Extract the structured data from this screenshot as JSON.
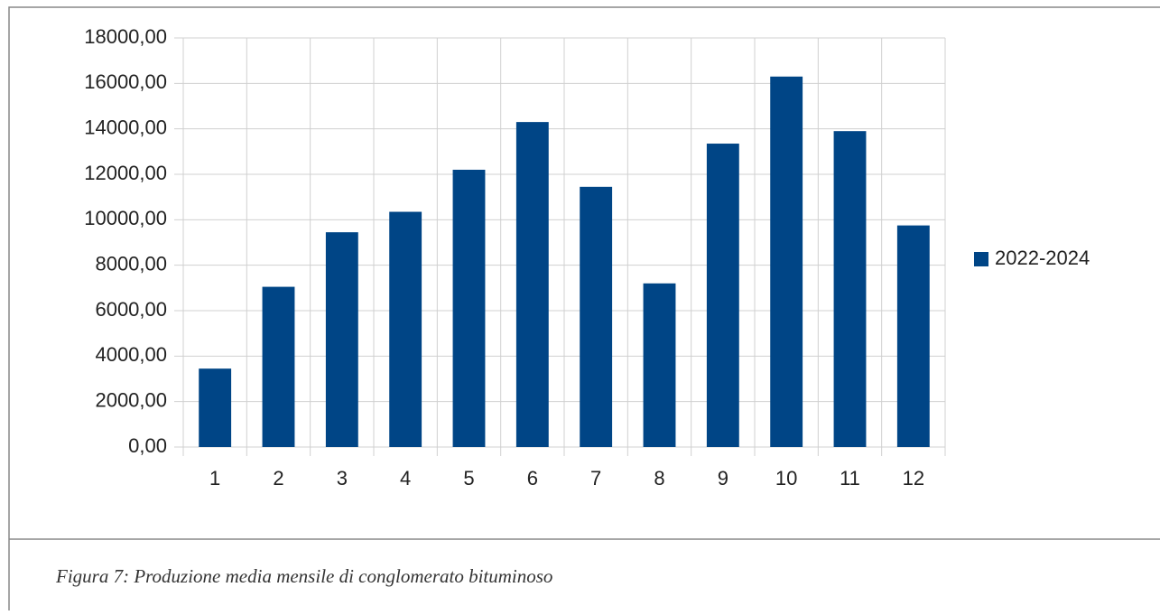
{
  "chart_data": {
    "type": "bar",
    "categories": [
      "1",
      "2",
      "3",
      "4",
      "5",
      "6",
      "7",
      "8",
      "9",
      "10",
      "11",
      "12"
    ],
    "series": [
      {
        "name": "2022-2024",
        "color": "#004586",
        "values": [
          3450,
          7050,
          9450,
          10350,
          12200,
          14300,
          11450,
          7200,
          13350,
          16300,
          13900,
          9750
        ]
      }
    ],
    "ylim": [
      0,
      18000
    ],
    "yticks": [
      {
        "value": 0,
        "label": "0,00"
      },
      {
        "value": 2000,
        "label": "2000,00"
      },
      {
        "value": 4000,
        "label": "4000,00"
      },
      {
        "value": 6000,
        "label": "6000,00"
      },
      {
        "value": 8000,
        "label": "8000,00"
      },
      {
        "value": 10000,
        "label": "10000,00"
      },
      {
        "value": 12000,
        "label": "12000,00"
      },
      {
        "value": 14000,
        "label": "14000,00"
      },
      {
        "value": 16000,
        "label": "16000,00"
      },
      {
        "value": 18000,
        "label": "18000,00"
      }
    ],
    "grid": true,
    "legend": "right"
  },
  "caption": "Figura 7: Produzione media mensile di conglomerato bituminoso"
}
